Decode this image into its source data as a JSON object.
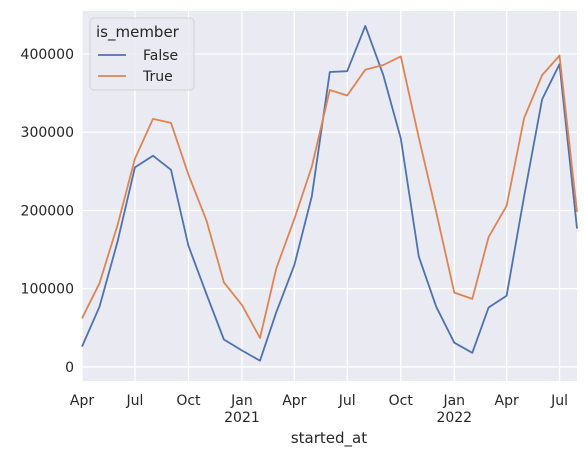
{
  "chart_data": {
    "type": "line",
    "xlabel": "started_at",
    "ylabel": "",
    "ylim": [
      -18000,
      455000
    ],
    "yticks": [
      0,
      100000,
      200000,
      300000,
      400000
    ],
    "ytick_labels": [
      "0",
      "100000",
      "200000",
      "300000",
      "400000"
    ],
    "xticks": [
      {
        "x": "2020-04-01",
        "label": "Apr",
        "year": ""
      },
      {
        "x": "2020-07-01",
        "label": "Jul",
        "year": ""
      },
      {
        "x": "2020-10-01",
        "label": "Oct",
        "year": ""
      },
      {
        "x": "2021-01-01",
        "label": "Jan",
        "year": "2021"
      },
      {
        "x": "2021-04-01",
        "label": "Apr",
        "year": ""
      },
      {
        "x": "2021-07-01",
        "label": "Jul",
        "year": ""
      },
      {
        "x": "2021-10-01",
        "label": "Oct",
        "year": ""
      },
      {
        "x": "2022-01-01",
        "label": "Jan",
        "year": "2022"
      },
      {
        "x": "2022-04-01",
        "label": "Apr",
        "year": ""
      },
      {
        "x": "2022-07-01",
        "label": "Jul",
        "year": ""
      }
    ],
    "xlim": [
      "2020-04-01",
      "2022-07-31"
    ],
    "grid": true,
    "legend": {
      "title": "is_member",
      "placement": "top-left"
    },
    "x": [
      "2020-04-01",
      "2020-05-01",
      "2020-06-01",
      "2020-07-01",
      "2020-08-01",
      "2020-09-01",
      "2020-10-01",
      "2020-11-01",
      "2020-12-01",
      "2021-01-01",
      "2021-02-01",
      "2021-03-01",
      "2021-04-01",
      "2021-05-01",
      "2021-06-01",
      "2021-07-01",
      "2021-08-01",
      "2021-09-01",
      "2021-10-01",
      "2021-11-01",
      "2021-12-01",
      "2022-01-01",
      "2022-02-01",
      "2022-03-01",
      "2022-04-01",
      "2022-05-01",
      "2022-06-01",
      "2022-07-01"
    ],
    "series": [
      {
        "name": "False",
        "color": "#4c72b0",
        "values": [
          26000,
          77000,
          160000,
          255000,
          270000,
          252000,
          155000,
          93000,
          35000,
          21000,
          8000,
          70000,
          130000,
          218000,
          377000,
          378000,
          436000,
          373000,
          292000,
          141000,
          77000,
          31000,
          18000,
          76000,
          91000,
          218000,
          342000,
          387000
        ]
      },
      {
        "name": "True",
        "color": "#dd8452",
        "values": [
          62000,
          107000,
          181000,
          266000,
          317000,
          312000,
          246000,
          187000,
          108000,
          79000,
          37000,
          126000,
          189000,
          256000,
          354000,
          347000,
          380000,
          386000,
          397000,
          293000,
          198000,
          95000,
          87000,
          166000,
          206000,
          318000,
          373000,
          398000
        ]
      }
    ],
    "x_end": "2022-07-31",
    "x_end_values": {
      "False": 177000,
      "True": 198000
    }
  }
}
